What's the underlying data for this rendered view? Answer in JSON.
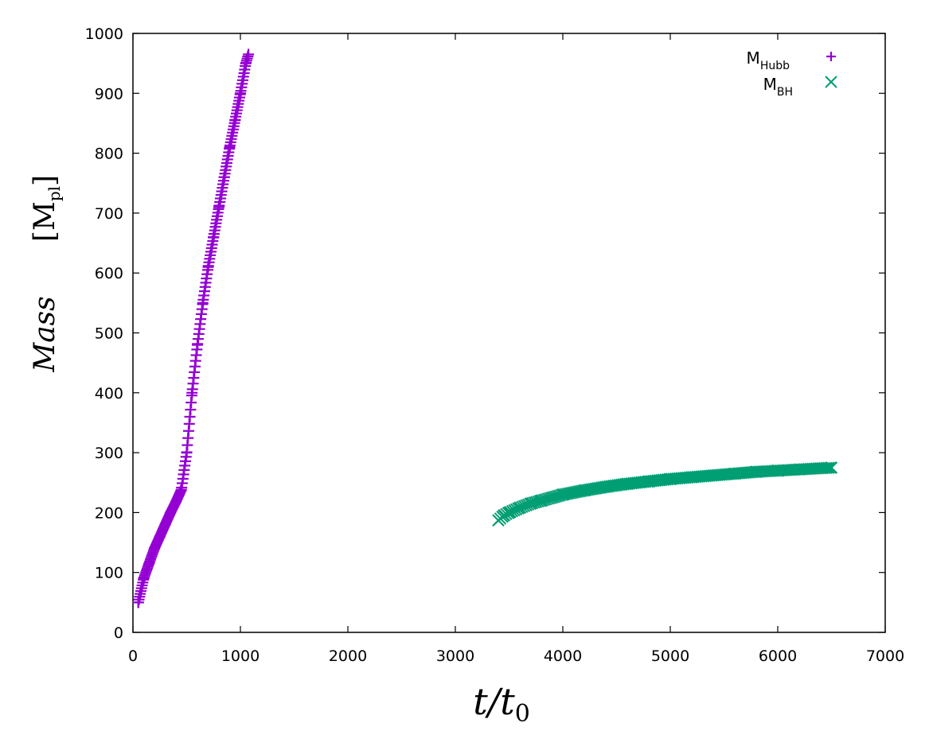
{
  "chart_data": {
    "type": "scatter",
    "title": "",
    "xlabel": "t/t",
    "xlabel_sub": "0",
    "ylabel": "Mass",
    "ylabel_unit_open": "[M",
    "ylabel_unit_sub": "pl",
    "ylabel_unit_close": "]",
    "xlim": [
      0,
      7000
    ],
    "ylim": [
      0,
      1000
    ],
    "x_ticks": [
      0,
      1000,
      2000,
      3000,
      4000,
      5000,
      6000,
      7000
    ],
    "y_ticks": [
      0,
      100,
      200,
      300,
      400,
      500,
      600,
      700,
      800,
      900,
      1000
    ],
    "grid": false,
    "legend_position": "top-right",
    "series": [
      {
        "name": "M",
        "name_sub": "Hubb",
        "marker": "plus",
        "color": "#9400d3",
        "x": [
          50,
          100,
          150,
          200,
          250,
          300,
          350,
          400,
          450,
          500,
          550,
          600,
          650,
          700,
          750,
          800,
          850,
          900,
          950,
          1000,
          1050,
          1075
        ],
        "y": [
          50,
          90,
          115,
          140,
          160,
          180,
          200,
          218,
          238,
          300,
          400,
          480,
          550,
          610,
          660,
          710,
          760,
          810,
          855,
          900,
          950,
          965
        ]
      },
      {
        "name": "M",
        "name_sub": "BH",
        "marker": "cross",
        "color": "#009e73",
        "x": [
          3400,
          3450,
          3500,
          3600,
          3700,
          3800,
          3900,
          4000,
          4200,
          4400,
          4600,
          4800,
          5000,
          5200,
          5400,
          5600,
          5800,
          6000,
          6200,
          6400,
          6500
        ],
        "y": [
          187,
          195,
          200,
          208,
          215,
          220,
          225,
          230,
          237,
          243,
          248,
          252,
          256,
          259,
          262,
          265,
          268,
          270,
          272,
          274,
          275
        ]
      }
    ]
  }
}
